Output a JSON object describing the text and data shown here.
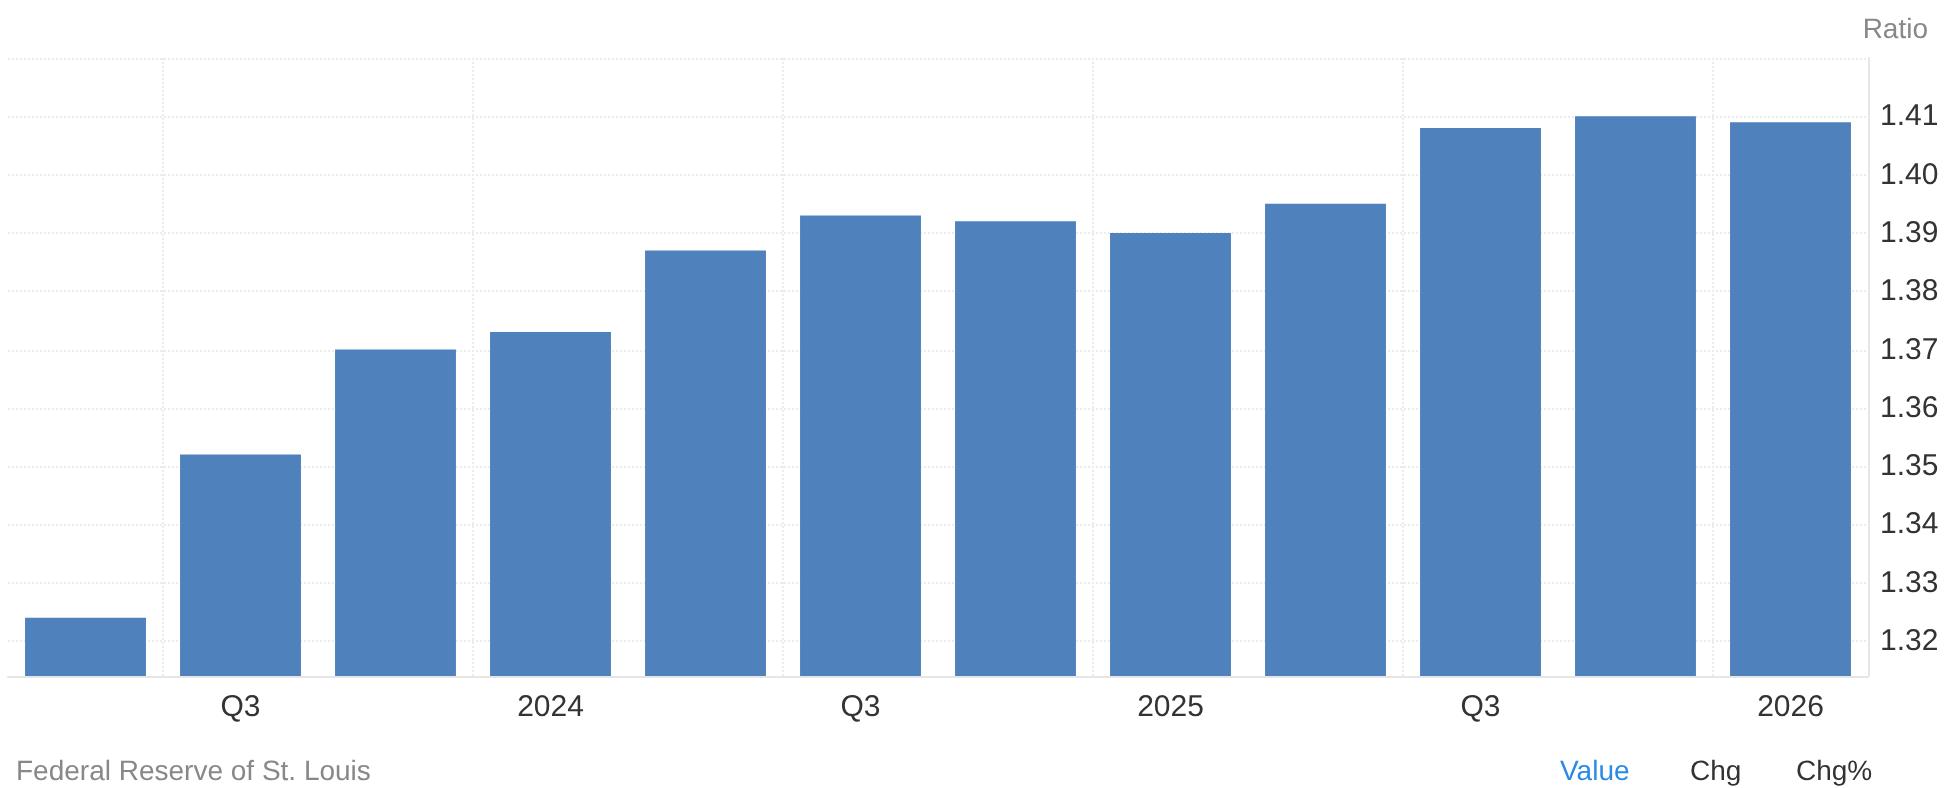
{
  "chart_data": {
    "type": "bar",
    "ylabel": "Ratio",
    "categories": [
      null,
      "Q3",
      null,
      "2024",
      null,
      "Q3",
      null,
      "2025",
      null,
      "Q3",
      null,
      "2026"
    ],
    "values": [
      1.324,
      1.352,
      1.37,
      1.373,
      1.387,
      1.393,
      1.392,
      1.39,
      1.395,
      1.408,
      1.41,
      1.409
    ],
    "color": "#4f81bd",
    "ylim": [
      1.314,
      1.42
    ],
    "yticks": [
      1.32,
      1.33,
      1.34,
      1.35,
      1.36,
      1.37,
      1.38,
      1.39,
      {
        "value": 1.4,
        "label": "1.40"
      },
      1.41,
      {
        "value": 1.42,
        "label": null
      }
    ],
    "grid": true,
    "annotations": [
      "Federal Reserve of St. Louis",
      "Value",
      "Chg",
      "Chg%"
    ]
  }
}
